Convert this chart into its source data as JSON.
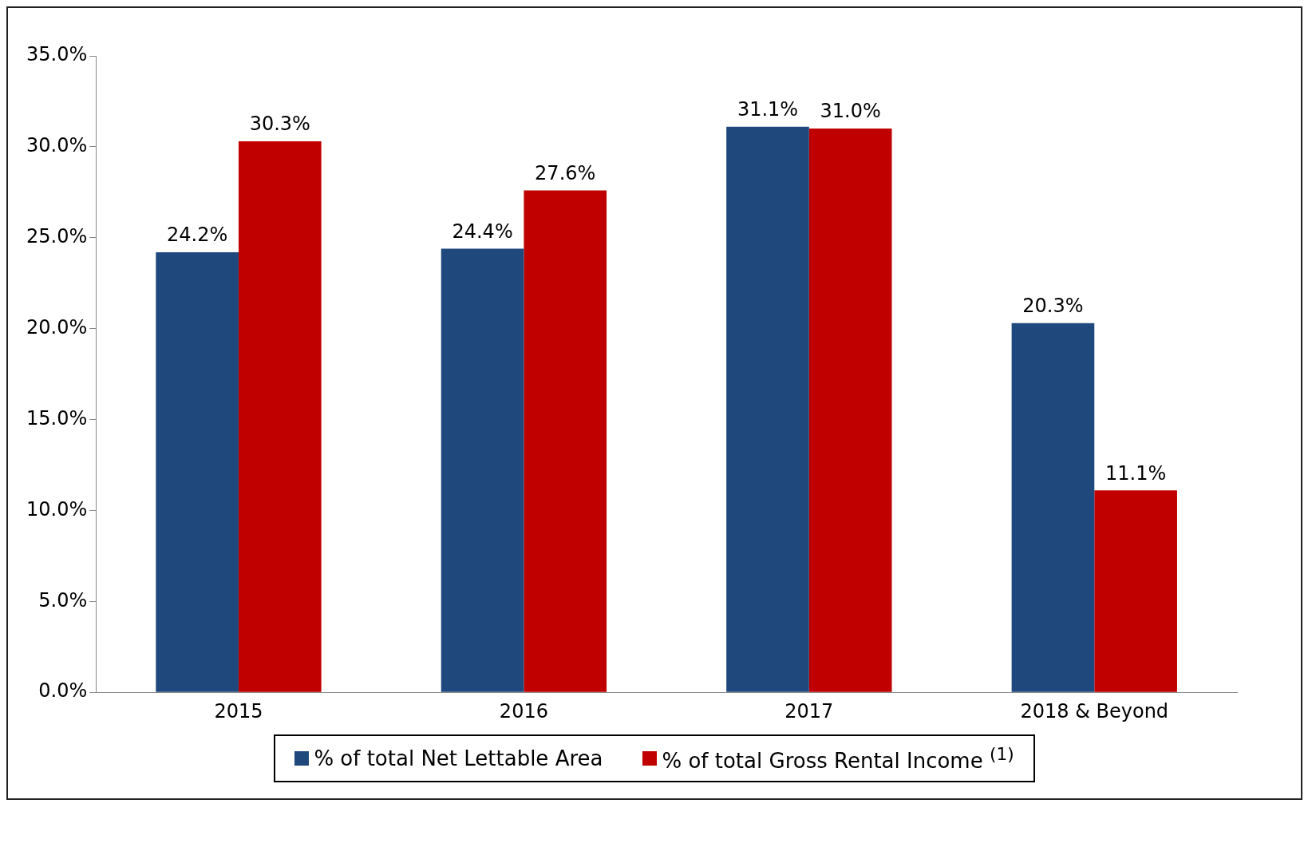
{
  "chart_data": {
    "type": "bar",
    "categories": [
      "2015",
      "2016",
      "2017",
      "2018 & Beyond"
    ],
    "series": [
      {
        "name": "% of total Net Lettable Area",
        "color": "#1f497d",
        "values": [
          24.2,
          24.4,
          31.1,
          20.3
        ],
        "value_labels": [
          "24.2%",
          "24.4%",
          "31.1%",
          "20.3%"
        ]
      },
      {
        "name": "% of total Gross Rental Income $^{(1)}$",
        "color": "#c00000",
        "values": [
          30.3,
          27.6,
          31.0,
          11.1
        ],
        "value_labels": [
          "30.3%",
          "27.6%",
          "31.0%",
          "11.1%"
        ]
      }
    ],
    "ylim": [
      0,
      35
    ],
    "yticks": [
      {
        "value": 0,
        "label": "0.0%"
      },
      {
        "value": 5,
        "label": "5.0%"
      },
      {
        "value": 10,
        "label": "10.0%"
      },
      {
        "value": 15,
        "label": "15.0%"
      },
      {
        "value": 20,
        "label": "20.0%"
      },
      {
        "value": 25,
        "label": "25.0%"
      },
      {
        "value": 30,
        "label": "30.0%"
      },
      {
        "value": 35,
        "label": "35.0%"
      }
    ],
    "legend": "bottom"
  }
}
